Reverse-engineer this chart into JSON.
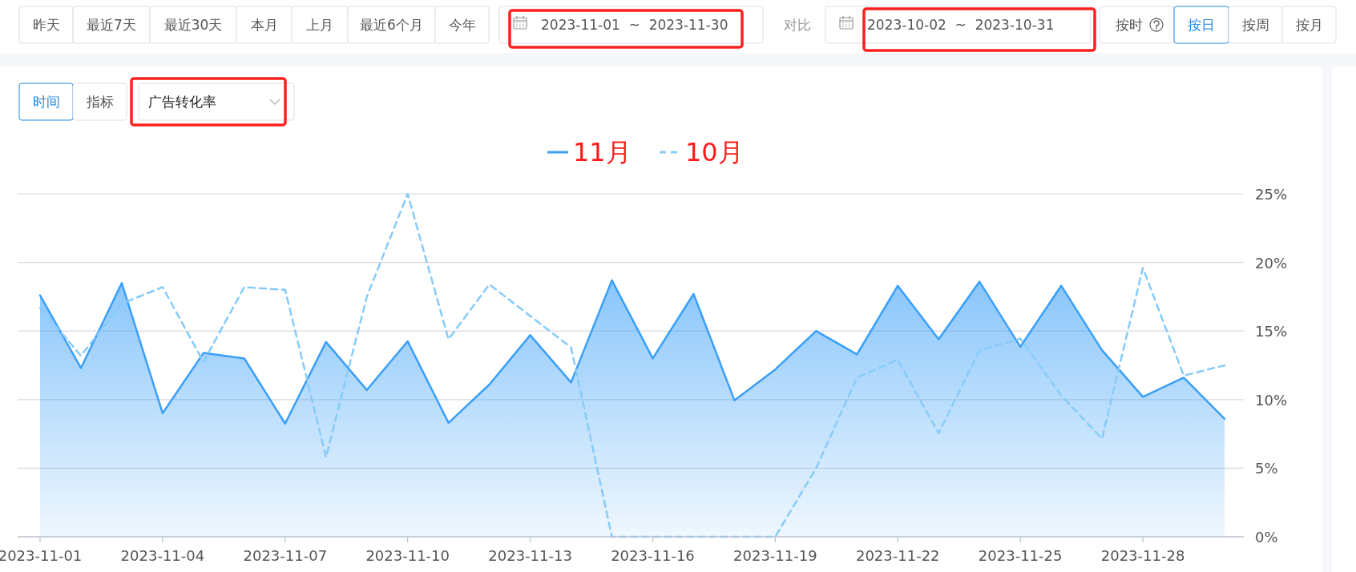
{
  "chart_data": {
    "type": "line",
    "categories": [
      "2023-11-01",
      null,
      null,
      "2023-11-04",
      null,
      null,
      "2023-11-07",
      null,
      null,
      "2023-11-10",
      null,
      null,
      "2023-11-13",
      null,
      null,
      "2023-11-16",
      null,
      null,
      "2023-11-19",
      null,
      null,
      "2023-11-22",
      null,
      null,
      "2023-11-25",
      null,
      null,
      "2023-11-28",
      null,
      null
    ],
    "series": [
      {
        "name": "11月",
        "type": "area",
        "color": "#3a9ff8",
        "values": [
          17.6,
          12.3,
          18.5,
          9.0,
          13.4,
          13.0,
          8.25,
          14.2,
          10.7,
          14.25,
          8.3,
          11.1,
          14.7,
          11.25,
          18.7,
          13.0,
          17.7,
          9.95,
          12.2,
          15.0,
          13.3,
          18.3,
          14.4,
          18.6,
          13.85,
          18.3,
          13.6,
          10.2,
          11.6,
          8.6
        ]
      },
      {
        "name": "10月",
        "line_style": "dashed",
        "color": "#86cbfa",
        "values": [
          16.7,
          13.2,
          17.0,
          18.2,
          12.75,
          18.2,
          18.0,
          5.8,
          17.5,
          25.0,
          14.4,
          18.4,
          16.1,
          13.8,
          0,
          0,
          0,
          0,
          0,
          5.0,
          11.6,
          12.9,
          7.55,
          13.6,
          14.45,
          10.3,
          7.15,
          19.6,
          11.75,
          12.5
        ]
      }
    ],
    "ylim": [
      0,
      25
    ],
    "yticks": [
      {
        "value": 0,
        "label": "0%"
      },
      {
        "value": 5,
        "label": "5%"
      },
      {
        "value": 10,
        "label": "10%"
      },
      {
        "value": 15,
        "label": "15%"
      },
      {
        "value": 20,
        "label": "20%"
      },
      {
        "value": 25,
        "label": "25%"
      }
    ],
    "grid": "y",
    "legend": "top",
    "annotations": [
      "昨天",
      "最近7天",
      "最近30天",
      "本月",
      "上月",
      "最近6个月",
      "今年",
      "2023-11-01  ~  2023-11-30",
      "对比",
      "2023-10-02  ~  2023-10-31",
      "按时",
      "按日",
      "按周",
      "按月",
      "时间",
      "指标",
      "广告转化率"
    ]
  }
}
